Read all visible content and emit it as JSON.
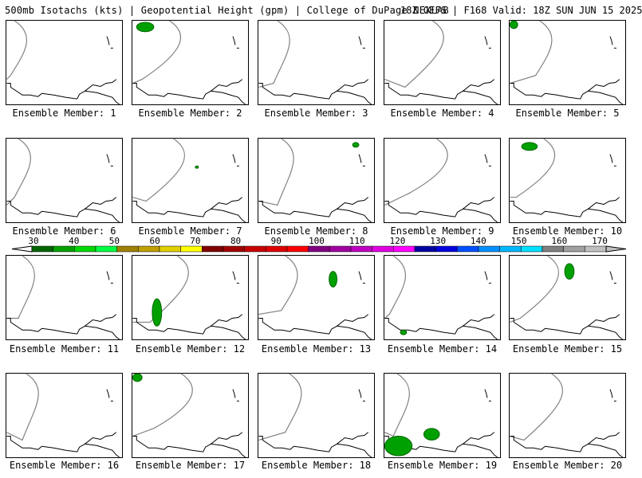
{
  "header": {
    "left_title": "500mb Isotachs (kts) | Geopotential Height (gpm) | College of DuPage NEXLAB",
    "right_title": "18Z GEFS | F168 Valid: 18Z SUN JUN 15 2025"
  },
  "members": [
    {
      "label": "Ensemble Member: 1"
    },
    {
      "label": "Ensemble Member: 2"
    },
    {
      "label": "Ensemble Member: 3"
    },
    {
      "label": "Ensemble Member: 4"
    },
    {
      "label": "Ensemble Member: 5"
    },
    {
      "label": "Ensemble Member: 6"
    },
    {
      "label": "Ensemble Member: 7"
    },
    {
      "label": "Ensemble Member: 8"
    },
    {
      "label": "Ensemble Member: 9"
    },
    {
      "label": "Ensemble Member: 10"
    },
    {
      "label": "Ensemble Member: 11"
    },
    {
      "label": "Ensemble Member: 12"
    },
    {
      "label": "Ensemble Member: 13"
    },
    {
      "label": "Ensemble Member: 14"
    },
    {
      "label": "Ensemble Member: 15"
    },
    {
      "label": "Ensemble Member: 16"
    },
    {
      "label": "Ensemble Member: 17"
    },
    {
      "label": "Ensemble Member: 18"
    },
    {
      "label": "Ensemble Member: 19"
    },
    {
      "label": "Ensemble Member: 20"
    }
  ],
  "colorbar": {
    "ticks": [
      "30",
      "40",
      "50",
      "60",
      "70",
      "80",
      "90",
      "100",
      "110",
      "120",
      "130",
      "140",
      "150",
      "160",
      "170"
    ],
    "colors": [
      "#006400",
      "#00a000",
      "#00d800",
      "#00ff40",
      "#a08000",
      "#c0a000",
      "#e0d000",
      "#ffff00",
      "#800000",
      "#a00000",
      "#c80000",
      "#e00000",
      "#ff0000",
      "#800080",
      "#a000a0",
      "#c000c0",
      "#e000e0",
      "#ff00ff",
      "#0000a0",
      "#0000e0",
      "#0050ff",
      "#0090ff",
      "#00b8ff",
      "#00e0ff",
      "#808080",
      "#a0a0a0",
      "#c0c0c0"
    ]
  }
}
